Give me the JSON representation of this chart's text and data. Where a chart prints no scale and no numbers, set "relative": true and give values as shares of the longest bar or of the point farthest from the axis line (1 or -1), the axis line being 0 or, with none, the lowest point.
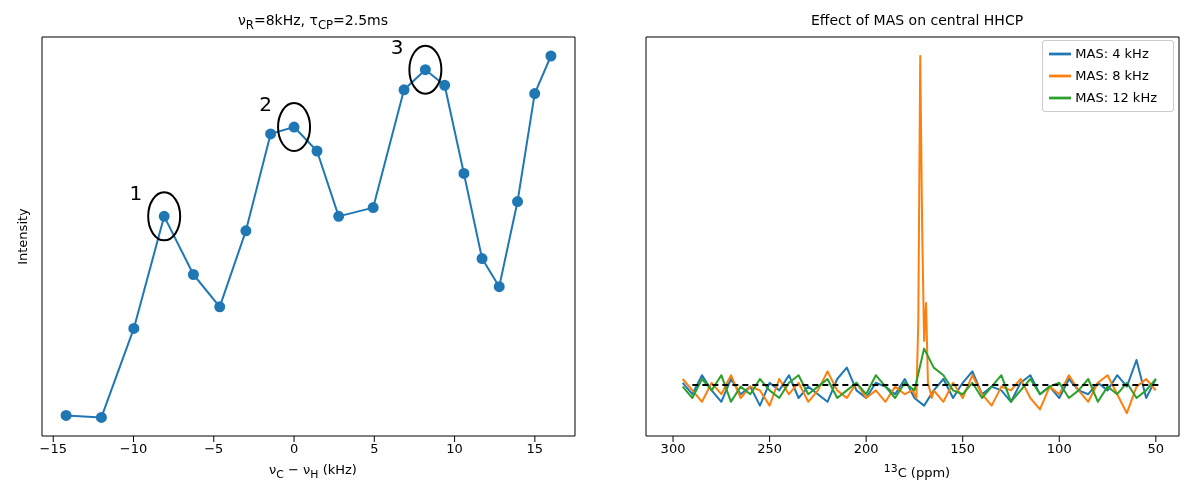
{
  "chart_data": [
    {
      "type": "line",
      "title": "ν$_{R}$=8kHz, τ$_{CP}$=2.5ms",
      "xlabel": "ν$_{C}$ − ν$_{H}$ (kHz)",
      "ylabel": "Intensity",
      "relative": true,
      "marker": "circle",
      "x": [
        -14.2,
        -12.0,
        -9.98,
        -8.09,
        -6.27,
        -4.63,
        -3.0,
        -1.46,
        0,
        1.43,
        2.78,
        4.93,
        6.85,
        8.18,
        9.38,
        10.58,
        11.71,
        12.78,
        13.92,
        14.99,
        16.0
      ],
      "series": [
        {
          "color": "#1f77b4",
          "values": [
            0.054,
            0.049,
            0.283,
            0.578,
            0.425,
            0.34,
            0.54,
            0.795,
            0.813,
            0.75,
            0.578,
            0.601,
            0.911,
            0.964,
            0.923,
            0.691,
            0.467,
            0.393,
            0.617,
            0.901,
            1.0
          ]
        }
      ],
      "xlim": [
        -15.7,
        17.5
      ],
      "xticks": [
        {
          "value": -15,
          "label": "−15"
        },
        {
          "value": -10,
          "label": "−10"
        },
        {
          "value": -5,
          "label": "−5"
        },
        0,
        5,
        10,
        15
      ],
      "annotations": [
        {
          "text": "1",
          "x": -8.09,
          "y": 0.578
        },
        {
          "text": "2",
          "x": 0,
          "y": 0.813
        },
        {
          "text": "3",
          "x": 8.18,
          "y": 0.964
        }
      ]
    },
    {
      "type": "line",
      "title": "Effect of MAS on central HHCP",
      "xlabel": "$^{13}$C (ppm)",
      "relative": true,
      "marker": "none",
      "legend": "top right",
      "series": [
        {
          "name": "MAS: 4 kHz",
          "color": "#1f77b4",
          "x": [
            295,
            290,
            285,
            280,
            275,
            270,
            265,
            260,
            255,
            250,
            245,
            240,
            235,
            230,
            225,
            220,
            215,
            210,
            205,
            200,
            195,
            190,
            185,
            180,
            175,
            170,
            165,
            160,
            155,
            150,
            145,
            140,
            135,
            130,
            125,
            120,
            115,
            110,
            105,
            100,
            95,
            90,
            85,
            80,
            75,
            70,
            65,
            60,
            55,
            50
          ],
          "values": [
            0.14,
            0.11,
            0.16,
            0.12,
            0.09,
            0.15,
            0.11,
            0.13,
            0.08,
            0.14,
            0.12,
            0.16,
            0.1,
            0.13,
            0.11,
            0.09,
            0.15,
            0.18,
            0.12,
            0.1,
            0.14,
            0.13,
            0.11,
            0.15,
            0.1,
            0.08,
            0.12,
            0.15,
            0.1,
            0.14,
            0.17,
            0.11,
            0.13,
            0.12,
            0.09,
            0.14,
            0.16,
            0.11,
            0.13,
            0.1,
            0.15,
            0.12,
            0.11,
            0.14,
            0.12,
            0.16,
            0.13,
            0.2,
            0.1,
            0.15
          ]
        },
        {
          "name": "MAS: 8 kHz",
          "color": "#ff7f0e",
          "x": [
            295,
            290,
            285,
            280,
            275,
            270,
            265,
            260,
            255,
            250,
            245,
            240,
            235,
            230,
            225,
            220,
            215,
            210,
            205,
            200,
            195,
            190,
            185,
            180,
            176,
            174,
            173,
            172,
            171,
            170,
            169,
            168,
            166,
            165,
            160,
            155,
            150,
            145,
            140,
            135,
            130,
            125,
            120,
            115,
            110,
            105,
            100,
            95,
            90,
            85,
            80,
            75,
            70,
            65,
            60,
            55,
            50
          ],
          "values": [
            0.15,
            0.12,
            0.09,
            0.14,
            0.11,
            0.16,
            0.1,
            0.13,
            0.12,
            0.08,
            0.15,
            0.11,
            0.14,
            0.09,
            0.12,
            0.17,
            0.12,
            0.1,
            0.14,
            0.1,
            0.12,
            0.09,
            0.13,
            0.11,
            0.12,
            0.1,
            0.3,
            1.0,
            0.55,
            0.25,
            0.35,
            0.14,
            0.1,
            0.12,
            0.09,
            0.14,
            0.1,
            0.16,
            0.11,
            0.08,
            0.13,
            0.12,
            0.15,
            0.1,
            0.07,
            0.13,
            0.11,
            0.16,
            0.12,
            0.09,
            0.14,
            0.16,
            0.11,
            0.06,
            0.13,
            0.15,
            0.12
          ]
        },
        {
          "name": "MAS: 12 kHz",
          "color": "#2ca02c",
          "x": [
            295,
            290,
            285,
            280,
            275,
            270,
            265,
            260,
            255,
            250,
            245,
            240,
            235,
            230,
            225,
            220,
            215,
            210,
            205,
            200,
            195,
            190,
            185,
            180,
            175,
            170,
            165,
            160,
            155,
            150,
            145,
            140,
            135,
            130,
            125,
            120,
            115,
            110,
            105,
            100,
            95,
            90,
            85,
            80,
            75,
            70,
            65,
            60,
            55,
            50
          ],
          "values": [
            0.13,
            0.1,
            0.15,
            0.12,
            0.16,
            0.09,
            0.13,
            0.11,
            0.15,
            0.12,
            0.1,
            0.14,
            0.16,
            0.11,
            0.13,
            0.15,
            0.1,
            0.12,
            0.14,
            0.11,
            0.16,
            0.13,
            0.1,
            0.14,
            0.12,
            0.23,
            0.18,
            0.16,
            0.12,
            0.11,
            0.14,
            0.1,
            0.13,
            0.16,
            0.09,
            0.12,
            0.15,
            0.11,
            0.13,
            0.14,
            0.1,
            0.12,
            0.15,
            0.09,
            0.13,
            0.11,
            0.14,
            0.1,
            0.12,
            0.15
          ]
        },
        {
          "color": "#000000",
          "line_style": "dashed",
          "x": [
            290,
            48
          ],
          "values": [
            0.134,
            0.134
          ]
        }
      ],
      "xlim": [
        314,
        38
      ],
      "xticks": [
        300,
        250,
        200,
        150,
        100,
        50
      ]
    }
  ]
}
